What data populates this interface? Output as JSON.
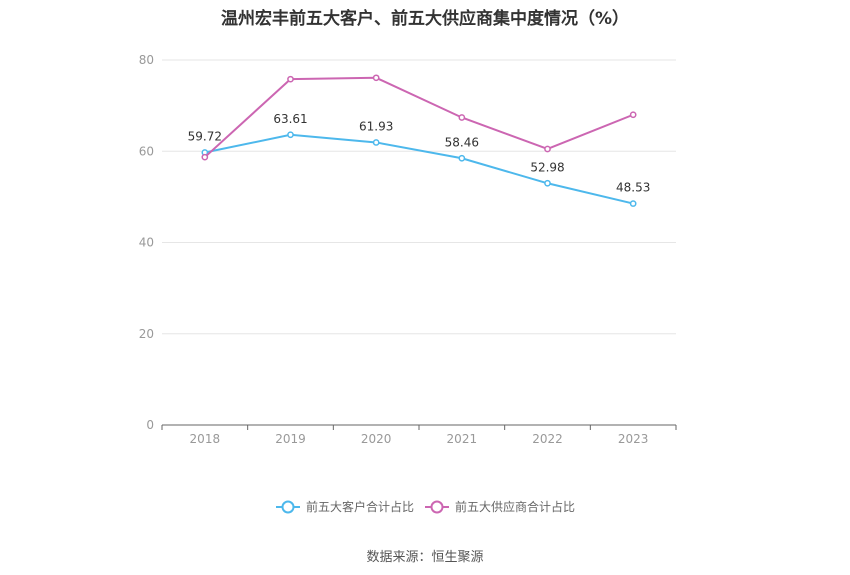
{
  "title": "温州宏丰前五大客户、前五大供应商集中度情况（%）",
  "source": "数据来源：恒生聚源",
  "chart_data": {
    "type": "line",
    "categories": [
      "2018",
      "2019",
      "2020",
      "2021",
      "2022",
      "2023"
    ],
    "ylim": [
      0,
      80
    ],
    "yticks": [
      0,
      20,
      40,
      60,
      80
    ],
    "grid": true,
    "legend_position": "bottom-center",
    "series": [
      {
        "name": "前五大客户合计占比",
        "values": [
          59.72,
          63.61,
          61.93,
          58.46,
          52.98,
          48.53
        ],
        "color": "#4db8ec",
        "data_labels": [
          "59.72",
          "63.61",
          "61.93",
          "58.46",
          "52.98",
          "48.53"
        ]
      },
      {
        "name": "前五大供应商合计占比",
        "values": [
          58.7,
          75.8,
          76.1,
          67.4,
          60.5,
          68.0
        ],
        "color": "#cc66b2"
      }
    ]
  }
}
